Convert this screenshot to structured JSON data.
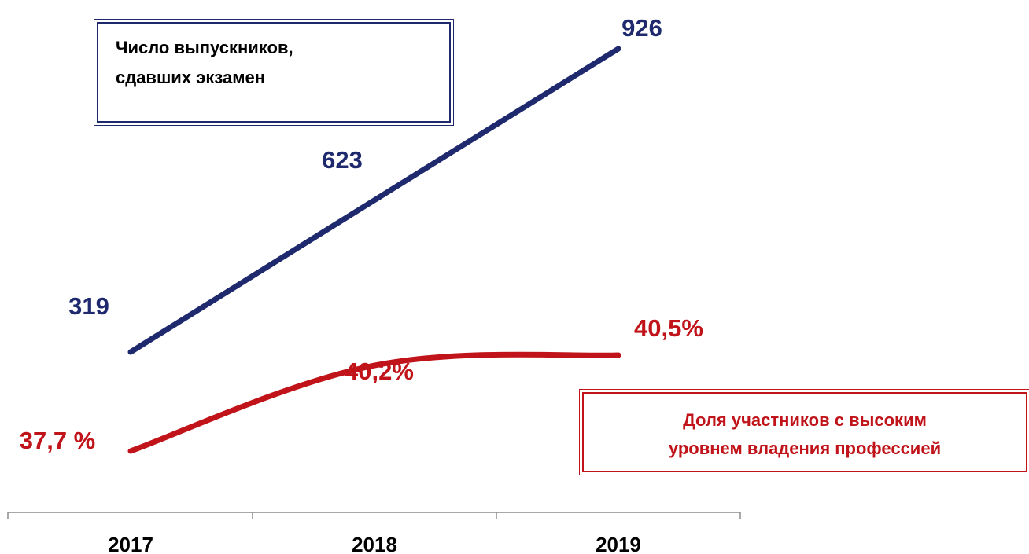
{
  "chart_data": {
    "type": "line",
    "categories": [
      "2017",
      "2018",
      "2019"
    ],
    "series": [
      {
        "name": "Число выпускников, сдавших экзамен",
        "legend_lines": [
          "Число выпускников,",
          "сдавших экзамен"
        ],
        "values": [
          319,
          623,
          926
        ],
        "labels": [
          "319",
          "623",
          "926"
        ],
        "color": "#1f2a6e"
      },
      {
        "name": "Доля участников с высоким уровнем владения профессией",
        "legend_lines": [
          "Доля участников  с высоким",
          "уровнем владения профессией"
        ],
        "values": [
          37.7,
          40.2,
          40.5
        ],
        "labels": [
          "37,7 %",
          "40,2%",
          "40,5%"
        ],
        "color": "#c0141a"
      }
    ],
    "grid": false
  }
}
